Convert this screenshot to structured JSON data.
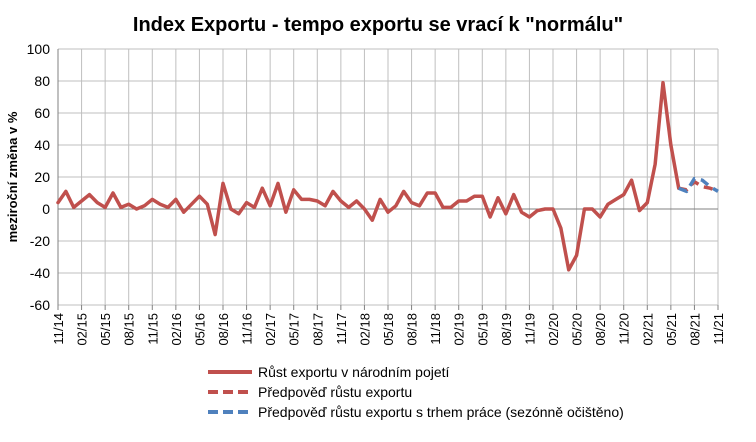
{
  "chart_data": {
    "type": "line",
    "title": "Index Exportu - tempo exportu se vrací k \"normálu\"",
    "ylabel": "meziroční změna v %",
    "xlabel": "",
    "ylim": [
      -60,
      100
    ],
    "yticks": [
      -60,
      -40,
      -20,
      0,
      20,
      40,
      60,
      80,
      100
    ],
    "grid": true,
    "legend_position": "bottom",
    "x": [
      "11/14",
      "12/14",
      "01/15",
      "02/15",
      "03/15",
      "04/15",
      "05/15",
      "06/15",
      "07/15",
      "08/15",
      "09/15",
      "10/15",
      "11/15",
      "12/15",
      "01/16",
      "02/16",
      "03/16",
      "04/16",
      "05/16",
      "06/16",
      "07/16",
      "08/16",
      "09/16",
      "10/16",
      "11/16",
      "12/16",
      "01/17",
      "02/17",
      "03/17",
      "04/17",
      "05/17",
      "06/17",
      "07/17",
      "08/17",
      "09/17",
      "10/17",
      "11/17",
      "12/17",
      "01/18",
      "02/18",
      "03/18",
      "04/18",
      "05/18",
      "06/18",
      "07/18",
      "08/18",
      "09/18",
      "10/18",
      "11/18",
      "12/18",
      "01/19",
      "02/19",
      "03/19",
      "04/19",
      "05/19",
      "06/19",
      "07/19",
      "08/19",
      "09/19",
      "10/19",
      "11/19",
      "12/19",
      "01/20",
      "02/20",
      "03/20",
      "04/20",
      "05/20",
      "06/20",
      "07/20",
      "08/20",
      "09/20",
      "10/20",
      "11/20",
      "12/20",
      "01/21",
      "02/21",
      "03/21",
      "04/21",
      "05/21",
      "06/21",
      "07/21",
      "08/21",
      "09/21",
      "10/21",
      "11/21"
    ],
    "x_tick_labels": [
      "11/14",
      "02/15",
      "05/15",
      "08/15",
      "11/15",
      "02/16",
      "05/16",
      "08/16",
      "11/16",
      "02/17",
      "05/17",
      "08/17",
      "11/17",
      "02/18",
      "05/18",
      "08/18",
      "11/18",
      "02/19",
      "05/19",
      "08/19",
      "11/19",
      "02/20",
      "05/20",
      "08/20",
      "11/20",
      "02/21",
      "05/21",
      "08/21",
      "11/21"
    ],
    "series": [
      {
        "name": "Růst exportu v národním pojetí",
        "color": "#c0504d",
        "style": "solid",
        "values": [
          4,
          11,
          1,
          5,
          9,
          4,
          1,
          10,
          1,
          3,
          0,
          2,
          6,
          3,
          1,
          6,
          -2,
          3,
          8,
          3,
          -16,
          16,
          0,
          -3,
          4,
          1,
          13,
          2,
          16,
          -2,
          12,
          6,
          6,
          5,
          2,
          11,
          5,
          1,
          5,
          0,
          -7,
          6,
          -2,
          2,
          11,
          4,
          2,
          10,
          10,
          1,
          1,
          5,
          5,
          8,
          8,
          -5,
          7,
          -3,
          9,
          -2,
          -5,
          -1,
          0,
          0,
          -12,
          -38,
          -29,
          0,
          0,
          -5,
          3,
          6,
          9,
          18,
          -1,
          4,
          28,
          79,
          40,
          13,
          null,
          null,
          null,
          null,
          null
        ]
      },
      {
        "name": "Předpověď růstu exportu",
        "color": "#c0504d",
        "style": "dashed",
        "values": [
          null,
          null,
          null,
          null,
          null,
          null,
          null,
          null,
          null,
          null,
          null,
          null,
          null,
          null,
          null,
          null,
          null,
          null,
          null,
          null,
          null,
          null,
          null,
          null,
          null,
          null,
          null,
          null,
          null,
          null,
          null,
          null,
          null,
          null,
          null,
          null,
          null,
          null,
          null,
          null,
          null,
          null,
          null,
          null,
          null,
          null,
          null,
          null,
          null,
          null,
          null,
          null,
          null,
          null,
          null,
          null,
          null,
          null,
          null,
          null,
          null,
          null,
          null,
          null,
          null,
          null,
          null,
          null,
          null,
          null,
          null,
          null,
          null,
          null,
          null,
          null,
          null,
          null,
          null,
          13,
          12,
          17,
          14,
          13,
          11
        ]
      },
      {
        "name": "Předpověď růstu exportu s trhem práce (sezónně očištěno)",
        "color": "#4f81bd",
        "style": "dashed",
        "values": [
          null,
          null,
          null,
          null,
          null,
          null,
          null,
          null,
          null,
          null,
          null,
          null,
          null,
          null,
          null,
          null,
          null,
          null,
          null,
          null,
          null,
          null,
          null,
          null,
          null,
          null,
          null,
          null,
          null,
          null,
          null,
          null,
          null,
          null,
          null,
          null,
          null,
          null,
          null,
          null,
          null,
          null,
          null,
          null,
          null,
          null,
          null,
          null,
          null,
          null,
          null,
          null,
          null,
          null,
          null,
          null,
          null,
          null,
          null,
          null,
          null,
          null,
          null,
          null,
          null,
          null,
          null,
          null,
          null,
          null,
          null,
          null,
          null,
          null,
          null,
          null,
          null,
          null,
          null,
          13,
          11,
          19,
          18,
          14,
          11
        ]
      }
    ]
  }
}
